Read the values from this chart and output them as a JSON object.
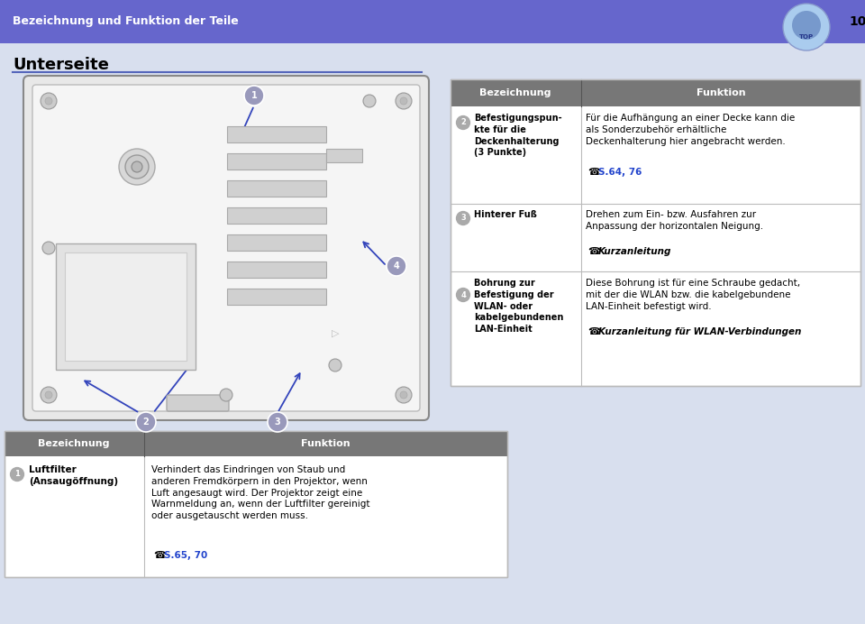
{
  "bg_color": "#d8dfee",
  "header_color": "#6666cc",
  "header_text": "Bezeichnung und Funktion der Teile",
  "header_text_color": "#ffffff",
  "page_number": "10",
  "title": "Unterseite",
  "title_underline_color": "#5566bb",
  "table_header_bg": "#777777",
  "table_col1_header": "Bezeichnung",
  "table_col2_header": "Funktion",
  "table_bg": "#ffffff",
  "table_border_color": "#bbbbbb",
  "circle_color": "#9999bb",
  "arrow_color": "#3344bb",
  "link_color": "#2244cc"
}
